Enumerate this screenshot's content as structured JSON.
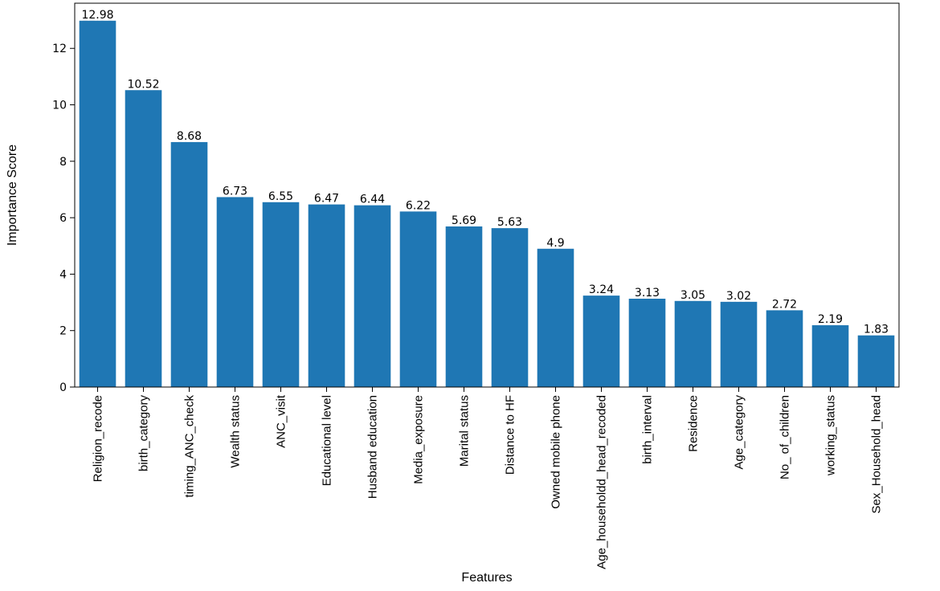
{
  "chart_data": {
    "type": "bar",
    "xlabel": "Features",
    "ylabel": "Importance Score",
    "ylim": [
      0,
      13.6
    ],
    "yticks": [
      "0",
      "2",
      "4",
      "6",
      "8",
      "10",
      "12"
    ],
    "bar_color": "#1f77b4",
    "categories": [
      "Religion_recode",
      "birth_category",
      "timing_ANC_check",
      "Wealth status",
      "ANC_visit",
      "Educational level",
      "Husband education",
      "Media_exposure",
      "Marital status",
      "Distance to HF",
      "Owned mobile phone",
      "Age_householdd_head_recoded",
      "birth_interval",
      "Residence",
      "Age_category",
      "No_ of_children",
      "working_status",
      "Sex_Household_head"
    ],
    "values": [
      12.98,
      10.52,
      8.68,
      6.73,
      6.55,
      6.47,
      6.44,
      6.22,
      5.69,
      5.63,
      4.9,
      3.24,
      3.13,
      3.05,
      3.02,
      2.72,
      2.19,
      1.83
    ],
    "value_labels": [
      "12.98",
      "10.52",
      "8.68",
      "6.73",
      "6.55",
      "6.47",
      "6.44",
      "6.22",
      "5.69",
      "5.63",
      "4.9",
      "3.24",
      "3.13",
      "3.05",
      "3.02",
      "2.72",
      "2.19",
      "1.83"
    ]
  }
}
